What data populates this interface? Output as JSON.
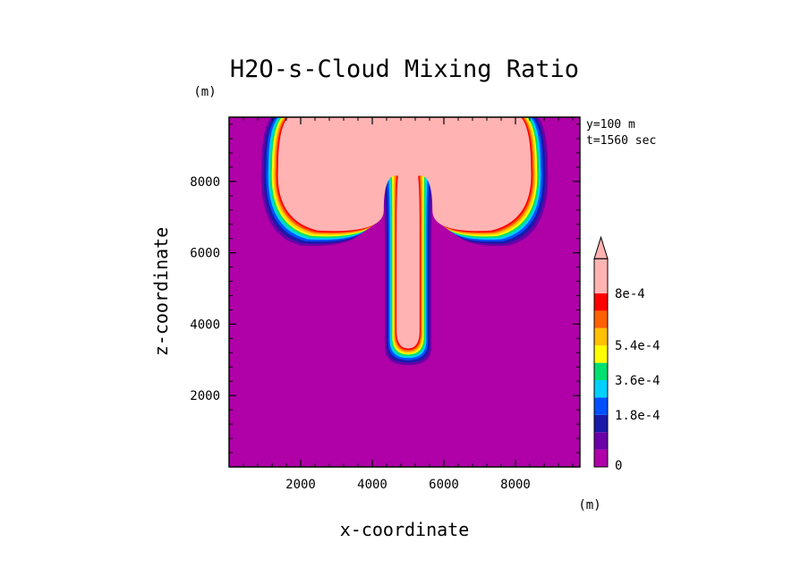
{
  "chart_data": {
    "type": "heatmap",
    "title": "H2O-s-Cloud Mixing Ratio",
    "xlabel": "x-coordinate",
    "ylabel": "z-coordinate",
    "x_unit": "(m)",
    "y_unit": "(m)",
    "info": [
      "y=100 m",
      "t=1560 sec"
    ],
    "xlim": [
      0,
      9800
    ],
    "ylim": [
      0,
      9800
    ],
    "x_ticks": [
      2000,
      4000,
      6000,
      8000
    ],
    "y_ticks": [
      2000,
      4000,
      6000,
      8000
    ],
    "x_tick_labels": [
      "2000",
      "4000",
      "6000",
      "8000"
    ],
    "y_tick_labels": [
      "2000",
      "4000",
      "6000",
      "8000"
    ],
    "colorbar": {
      "levels": [
        0,
        9e-05,
        0.00018,
        0.00027,
        0.00036,
        0.00045,
        0.00054,
        0.00063,
        0.00072,
        0.0008
      ],
      "labeled": [
        {
          "value": 0,
          "label": "0"
        },
        {
          "value": 0.00018,
          "label": "1.8e-4"
        },
        {
          "value": 0.00036,
          "label": "3.6e-4"
        },
        {
          "value": 0.00054,
          "label": "5.4e-4"
        },
        {
          "value": 0.0008,
          "label": "8e-4"
        }
      ],
      "colors": [
        "#b000a8",
        "#6a00a8",
        "#1a1aa8",
        "#0050ff",
        "#00d0ff",
        "#00e070",
        "#ffff00",
        "#ffc000",
        "#ff6000",
        "#ff0000",
        "#ffb3b3"
      ],
      "extend": "max"
    },
    "field_description_levels": {
      "background": 0,
      "cloud_core": 0.0008
    }
  }
}
